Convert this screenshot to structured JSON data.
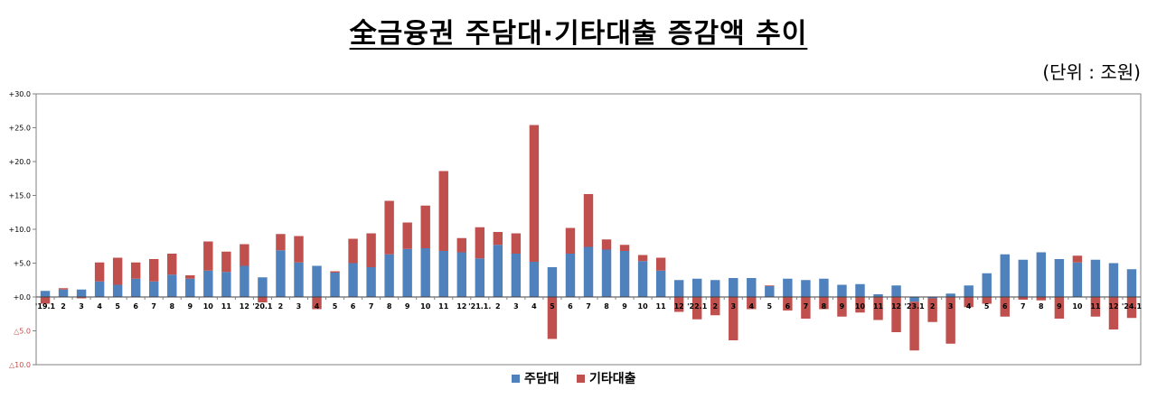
{
  "title": "全금융권 주담대·기타대출 증감액 추이",
  "unit_label": "(단위 : 조원)",
  "colors": {
    "mortgage": "#4f81bd",
    "other": "#c0504d",
    "axis": "#808080",
    "grid": "#d9d9d9"
  },
  "chart_data": {
    "type": "bar",
    "stacked": true,
    "ylim": [
      -10,
      30
    ],
    "yticks": [
      -10,
      -5,
      0,
      5,
      10,
      15,
      20,
      25,
      30
    ],
    "ytick_labels": [
      "△10.0",
      "△5.0",
      "+0.0",
      "+5.0",
      "+10.0",
      "+15.0",
      "+20.0",
      "+25.0",
      "+30.0"
    ],
    "categories": [
      "'19.1",
      "2",
      "3",
      "4",
      "5",
      "6",
      "7",
      "8",
      "9",
      "10",
      "11",
      "12",
      "'20.1",
      "2",
      "3",
      "4",
      "5",
      "6",
      "7",
      "8",
      "9",
      "10",
      "11",
      "12",
      "'21.1.",
      "2",
      "3",
      "4",
      "5",
      "6",
      "7",
      "8",
      "9",
      "10",
      "11",
      "12",
      "'22.1",
      "2",
      "3",
      "4",
      "5",
      "6",
      "7",
      "8",
      "9",
      "10",
      "11",
      "12",
      "'23.1",
      "2",
      "3",
      "4",
      "5",
      "6",
      "7",
      "8",
      "9",
      "10",
      "11",
      "12",
      "'24.1"
    ],
    "series": [
      {
        "name": "주담대",
        "values": [
          0.9,
          1.1,
          1.1,
          2.3,
          1.8,
          2.7,
          2.3,
          3.3,
          2.7,
          3.9,
          3.7,
          4.6,
          2.9,
          6.9,
          5.1,
          4.6,
          3.6,
          5.0,
          4.4,
          6.3,
          7.1,
          7.2,
          6.8,
          6.6,
          5.7,
          7.7,
          6.4,
          5.2,
          4.4,
          6.4,
          7.4,
          7.0,
          6.8,
          5.3,
          3.9,
          2.5,
          2.7,
          2.5,
          2.8,
          2.8,
          1.6,
          2.7,
          2.5,
          2.7,
          1.8,
          1.9,
          0.4,
          1.7,
          -0.7,
          -0.2,
          0.5,
          1.7,
          3.5,
          6.3,
          5.5,
          6.6,
          5.6,
          5.1,
          5.5,
          5.0,
          4.1
        ]
      },
      {
        "name": "기타대출",
        "values": [
          -1.0,
          0.2,
          -0.2,
          2.8,
          4.0,
          2.4,
          3.3,
          3.1,
          0.5,
          4.3,
          3.0,
          3.2,
          -0.8,
          2.4,
          3.9,
          -1.8,
          0.2,
          3.6,
          5.0,
          7.9,
          3.9,
          6.3,
          11.8,
          2.1,
          4.6,
          1.9,
          3.0,
          20.2,
          -6.2,
          3.8,
          7.8,
          1.5,
          0.9,
          0.9,
          1.9,
          -2.2,
          -3.3,
          -2.7,
          -6.4,
          -1.8,
          0.1,
          -2.0,
          -3.2,
          -1.8,
          -2.9,
          -2.3,
          -3.4,
          -5.2,
          -7.2,
          -3.5,
          -6.9,
          -1.5,
          -1.0,
          -2.9,
          -0.4,
          -0.5,
          -3.2,
          1.0,
          -2.9,
          -4.8,
          -3.1
        ]
      }
    ],
    "legend_position": "bottom-center"
  }
}
